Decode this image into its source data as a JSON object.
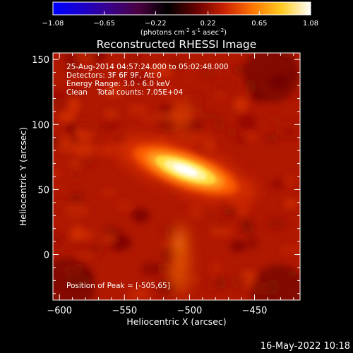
{
  "chart_data": {
    "type": "heatmap",
    "title": "Reconstructed RHESSI Image",
    "xlabel": "Heliocentric X (arcsec)",
    "ylabel": "Heliocentric Y (arcsec)",
    "xlim": [
      -605,
      -415
    ],
    "ylim": [
      -35,
      155
    ],
    "xticks": [
      -600,
      -550,
      -500,
      -450
    ],
    "yticks": [
      0,
      50,
      100,
      150
    ],
    "annotations": [
      "25-Aug-2014 04:57:24.000 to 05:02:48.000",
      "Detectors: 3F 6F 9F, Att 0",
      "Energy Range: 3.0 - 6.0 keV",
      "Clean    Total counts: 7.05E+04"
    ],
    "peak_label": "Position of Peak = [-505,65]",
    "peak": [
      -505,
      65
    ],
    "colorbar": {
      "min": -1.08,
      "max": 1.08,
      "ticks": [
        -1.08,
        -0.65,
        -0.22,
        0.22,
        0.65,
        1.08
      ],
      "units_prefix": "(photons cm",
      "units_e1": "-2",
      "units_mid": " s",
      "units_e2": "-1",
      "units_mid2": " asec",
      "units_e3": "-2",
      "units_suffix": ")",
      "colors": [
        "#0000ff",
        "#1a00cc",
        "#3a0088",
        "#4a0040",
        "#000000",
        "#660000",
        "#cc2200",
        "#ff7700",
        "#ffcc22",
        "#ffffff"
      ]
    },
    "source": {
      "center": [
        -503,
        65
      ],
      "angle_deg": -20,
      "major_halfwidth_arcsec": 29,
      "minor_halfwidth_arcsec": 9,
      "peak_value": 1.08
    },
    "background": {
      "level": 0.24,
      "secondary_lobe_center": [
        -508,
        -8
      ],
      "secondary_lobe_value": 0.42
    }
  },
  "footer": {
    "timestamp": "16-May-2022 10:18"
  }
}
